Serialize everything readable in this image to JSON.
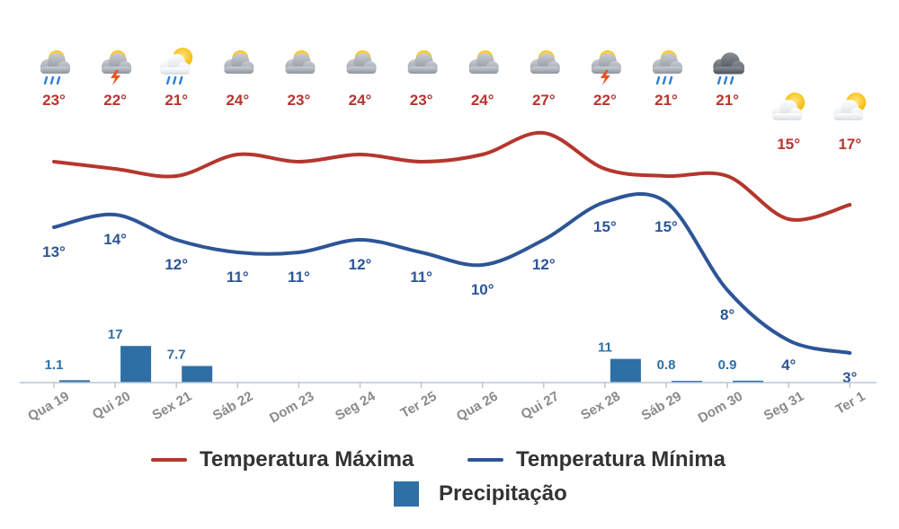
{
  "chart_data": {
    "type": "line",
    "categories": [
      "Qua 19",
      "Qui 20",
      "Sex 21",
      "Sáb 22",
      "Dom 23",
      "Seg 24",
      "Ter 25",
      "Qua 26",
      "Qui 27",
      "Sex 28",
      "Sáb 29",
      "Dom 30",
      "Seg 31",
      "Ter 1"
    ],
    "series": [
      {
        "name": "Temperatura Máxima",
        "type": "line",
        "color": "#b5362e",
        "values": [
          23,
          22,
          21,
          24,
          23,
          24,
          23,
          24,
          27,
          22,
          21,
          21,
          15,
          17
        ],
        "labels": [
          "23°",
          "22°",
          "21°",
          "24°",
          "23°",
          "24°",
          "23°",
          "24°",
          "27°",
          "22°",
          "21°",
          "21°",
          "15°",
          "17°"
        ]
      },
      {
        "name": "Temperatura Mínima",
        "type": "line",
        "color": "#2d5597",
        "values": [
          13,
          14,
          12,
          11,
          11,
          12,
          11,
          10,
          12,
          15,
          15,
          8,
          4,
          3
        ],
        "labels": [
          "13°",
          "14°",
          "12°",
          "11°",
          "11°",
          "12°",
          "11°",
          "10°",
          "12°",
          "15°",
          "15°",
          "8°",
          "4°",
          "3°"
        ]
      },
      {
        "name": "Precipitação",
        "type": "bar",
        "color": "#2e6fa6",
        "values": [
          1.1,
          17,
          7.7,
          0,
          0,
          0,
          0,
          0,
          0,
          11,
          0.8,
          0.9,
          0,
          0
        ],
        "labels": [
          "1.1",
          "17",
          "7.7",
          "",
          "",
          "",
          "",
          "",
          "",
          "11",
          "0.8",
          "0.9",
          "",
          ""
        ]
      }
    ],
    "weather_icons": [
      "partly-cloudy-rain-icon",
      "thunderstorm-icon",
      "sun-cloud-rain-icon",
      "partly-cloudy-icon",
      "partly-cloudy-icon",
      "partly-cloudy-icon",
      "partly-cloudy-icon",
      "partly-cloudy-icon",
      "partly-cloudy-icon",
      "thunderstorm-icon",
      "partly-cloudy-rain-icon",
      "dark-cloud-rain-icon",
      "sun-cloud-icon",
      "sun-cloud-icon"
    ],
    "legend": {
      "position": "bottom"
    },
    "grid": false
  },
  "legend": {
    "max_label": "Temperatura Máxima",
    "min_label": "Temperatura Mínima",
    "precip_label": "Precipitação"
  },
  "colors": {
    "max": "#b5362e",
    "min": "#2d5597",
    "precip": "#2e6fa6"
  }
}
